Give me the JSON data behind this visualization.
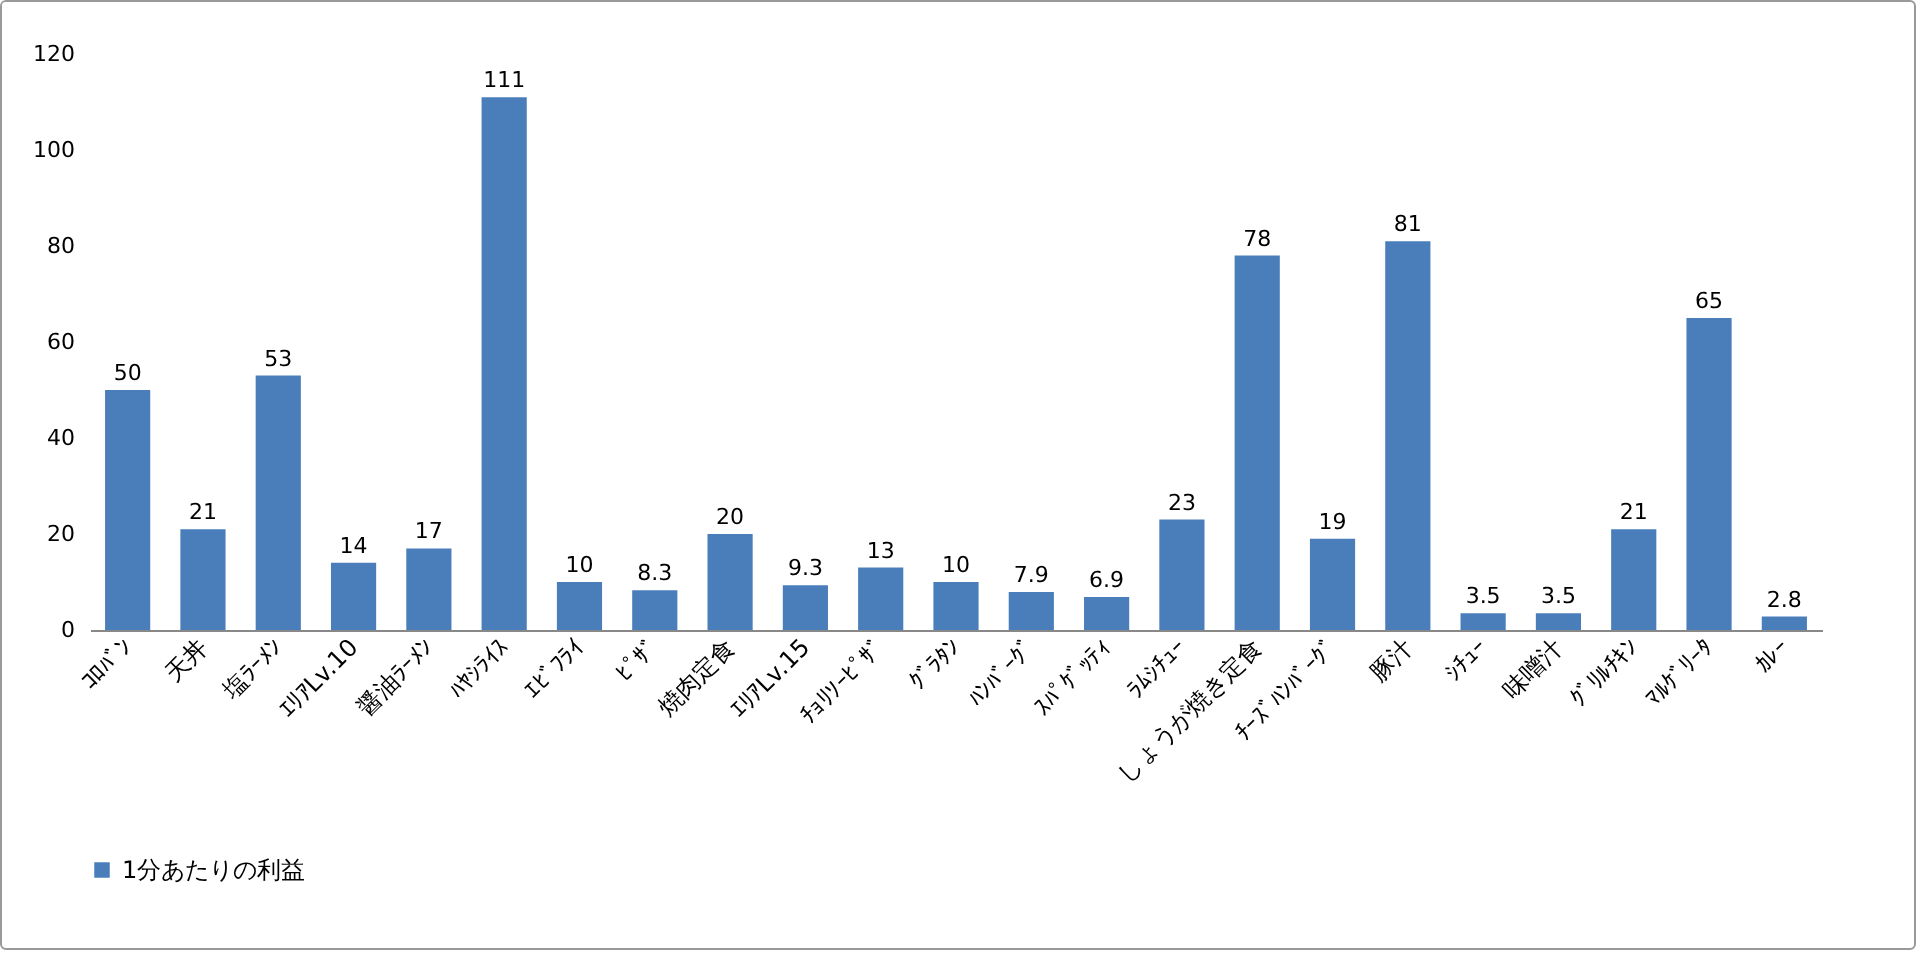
{
  "chart_data": {
    "type": "bar",
    "categories": [
      "ｺﾛﾊﾞﾝ",
      "天丼",
      "塩ﾗｰﾒﾝ",
      "ｴﾘｱLv.10",
      "醤油ﾗｰﾒﾝ",
      "ﾊﾔｼﾗｲｽ",
      "ｴﾋﾞﾌﾗｲ",
      "ﾋﾟｻﾞ",
      "焼肉定食",
      "ｴﾘｱLv.15",
      "ﾁｮﾘｿｰﾋﾟｻﾞ",
      "ｸﾞﾗﾀﾝ",
      "ﾊﾝﾊﾞｰｸﾞ",
      "ｽﾊﾟｹﾞｯﾃｨ",
      "ﾗﾑｼﾁｭｰ",
      "しょうが焼き定食",
      "ﾁｰｽﾞﾊﾝﾊﾞｰｸﾞ",
      "豚汁",
      "ｼﾁｭｰ",
      "味噌汁",
      "ｸﾞﾘﾙﾁｷﾝ",
      "ﾏﾙｹﾞﾘｰﾀ",
      "ｶﾚｰ"
    ],
    "series": [
      {
        "name": "1分あたりの利益",
        "color": "#4a7ebb",
        "values": [
          50,
          21,
          53,
          14,
          17,
          111,
          10,
          8.3,
          20,
          9.3,
          13,
          10,
          7.9,
          6.9,
          23,
          78,
          19,
          81,
          3.5,
          3.5,
          21,
          65,
          2.8
        ]
      }
    ],
    "ylim": [
      0,
      120
    ],
    "yticks": [
      0,
      20,
      40,
      60,
      80,
      100,
      120
    ],
    "data_labels": true,
    "legend": "bottom",
    "grid": false
  }
}
